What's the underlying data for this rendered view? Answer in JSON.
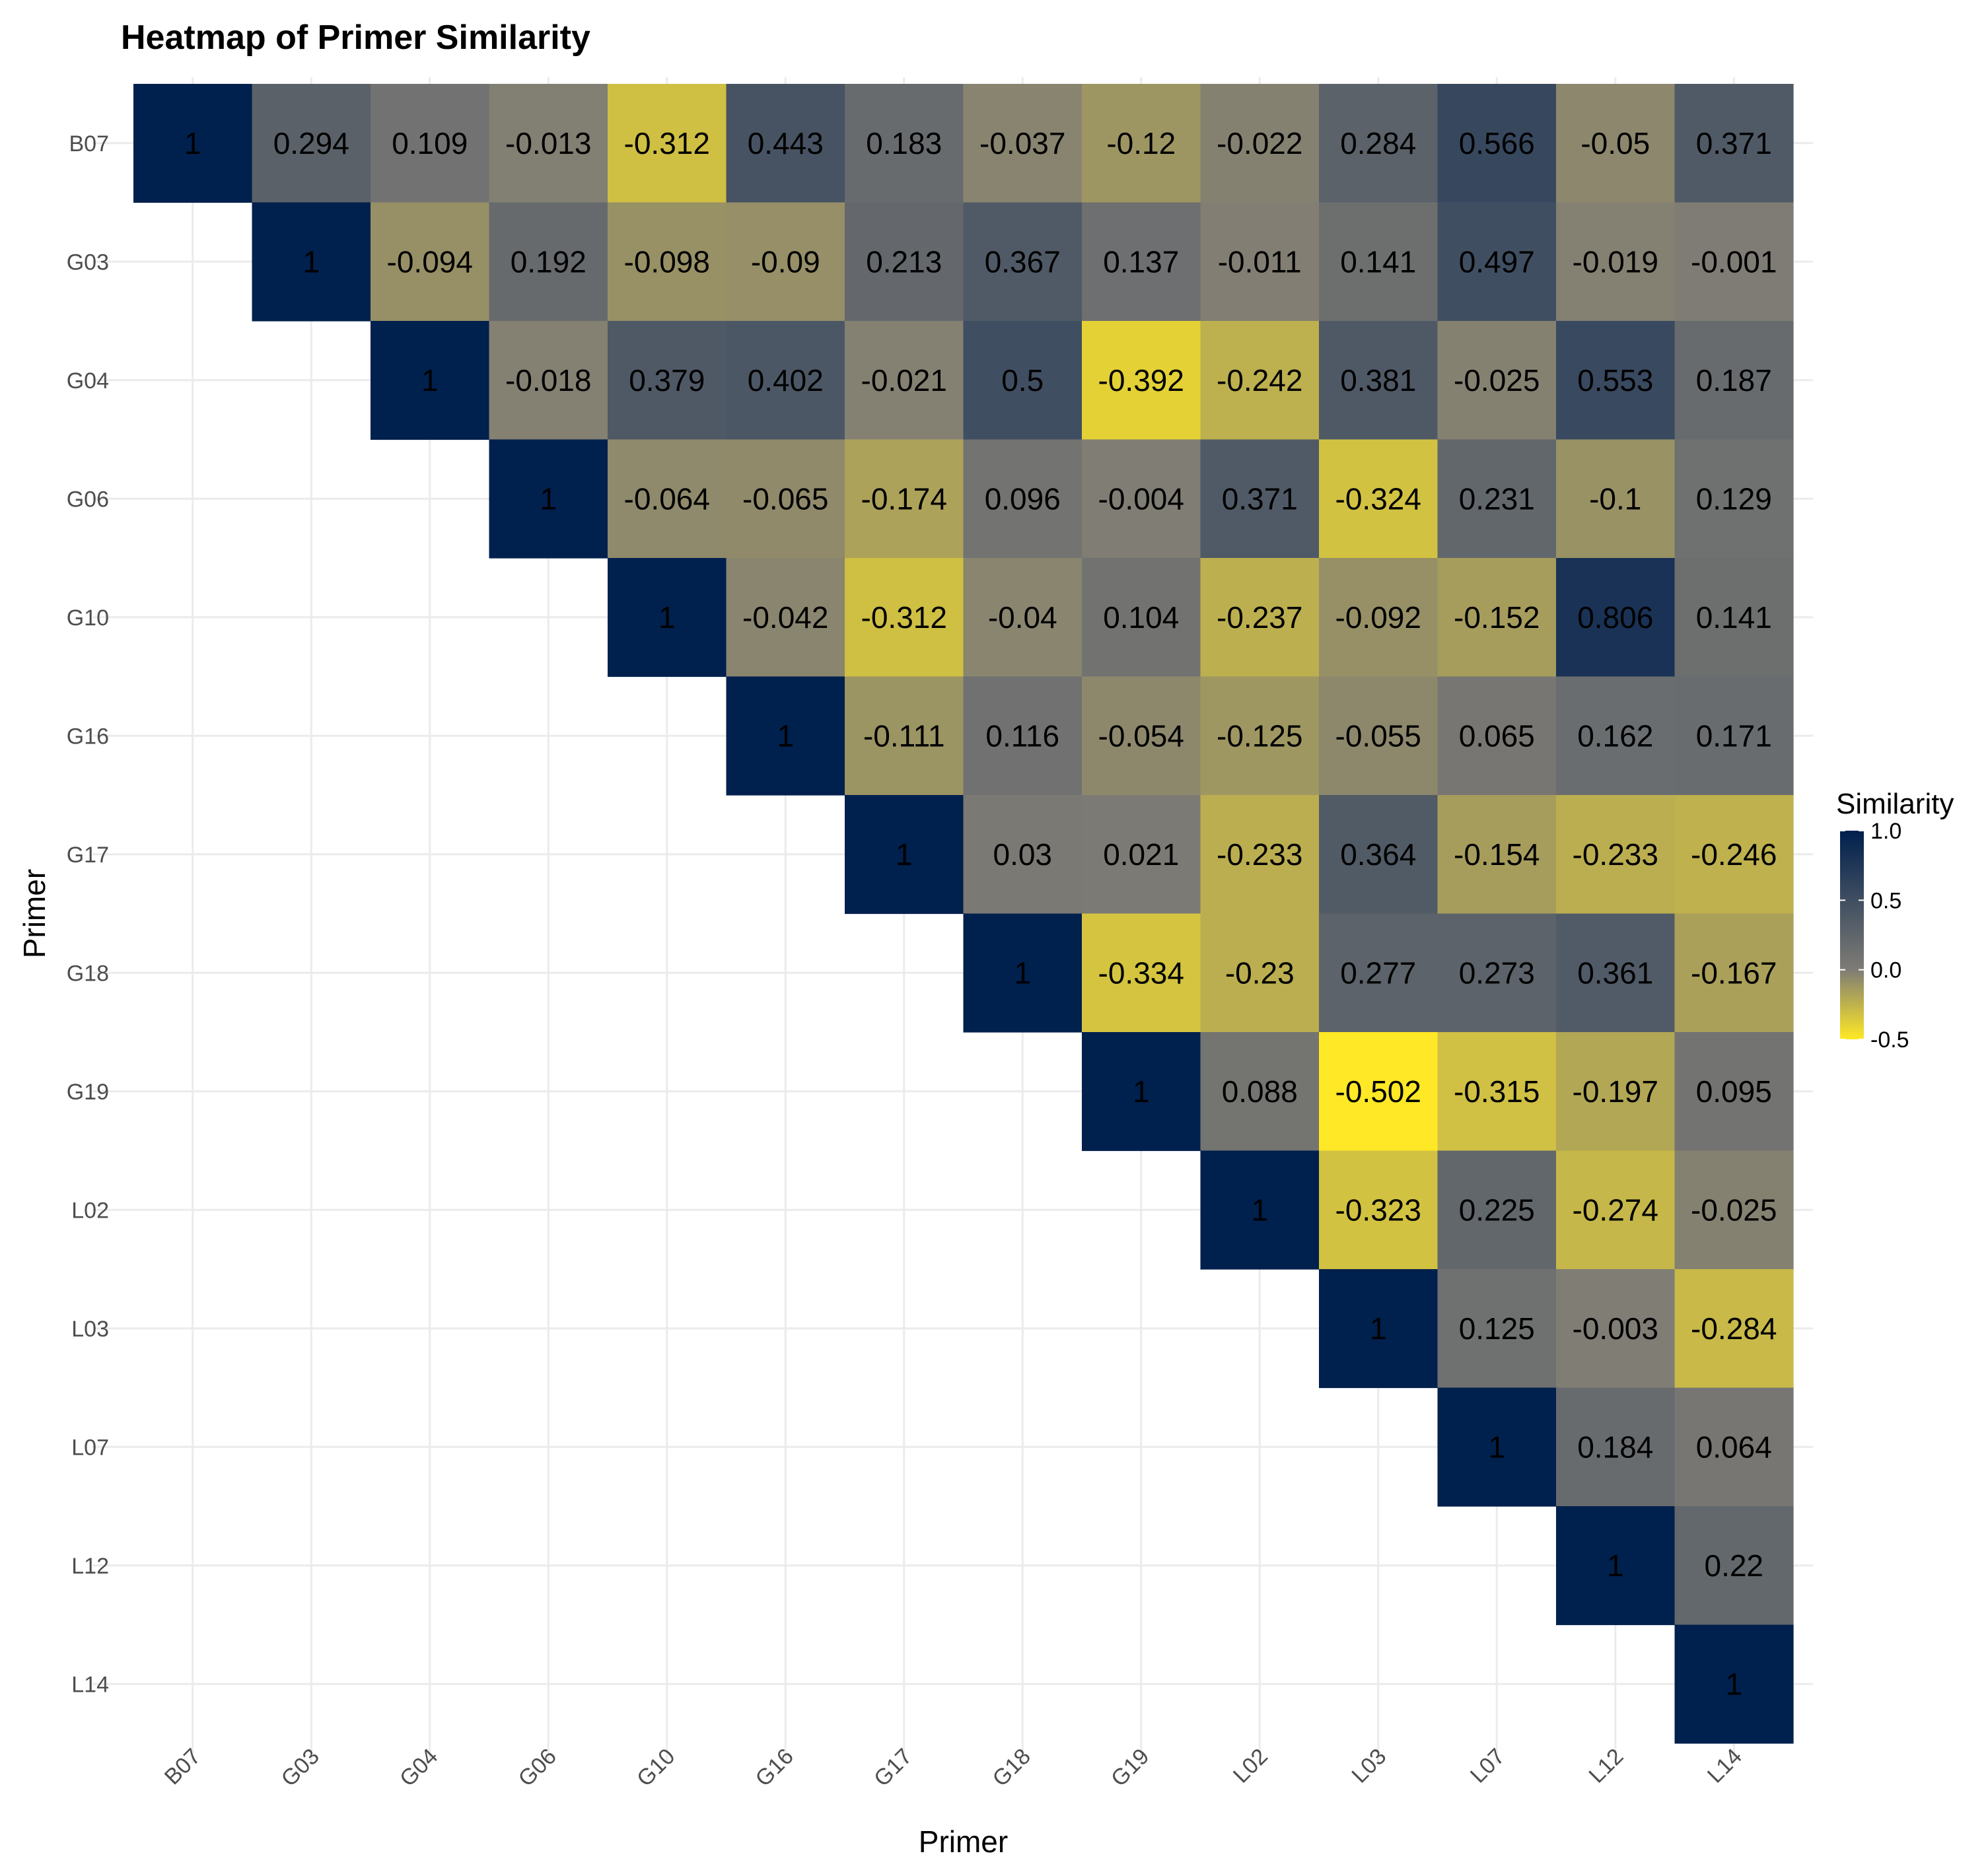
{
  "chart_data": {
    "type": "heatmap",
    "title": "Heatmap of Primer Similarity",
    "xlabel": "Primer",
    "ylabel": "Primer",
    "categories": [
      "B07",
      "G03",
      "G04",
      "G06",
      "G10",
      "G16",
      "G17",
      "G18",
      "G19",
      "L02",
      "L03",
      "L07",
      "L12",
      "L14"
    ],
    "layout": "upper-triangle",
    "rows": [
      {
        "label": "B07",
        "values": [
          1,
          0.294,
          0.109,
          -0.013,
          -0.312,
          0.443,
          0.183,
          -0.037,
          -0.12,
          -0.022,
          0.284,
          0.566,
          -0.05,
          0.371
        ]
      },
      {
        "label": "G03",
        "values": [
          1,
          -0.094,
          0.192,
          -0.098,
          -0.09,
          0.213,
          0.367,
          0.137,
          -0.011,
          0.141,
          0.497,
          -0.019,
          -0.001
        ]
      },
      {
        "label": "G04",
        "values": [
          1,
          -0.018,
          0.379,
          0.402,
          -0.021,
          0.5,
          -0.392,
          -0.242,
          0.381,
          -0.025,
          0.553,
          0.187
        ]
      },
      {
        "label": "G06",
        "values": [
          1,
          -0.064,
          -0.065,
          -0.174,
          0.096,
          -0.004,
          0.371,
          -0.324,
          0.231,
          -0.1,
          0.129
        ]
      },
      {
        "label": "G10",
        "values": [
          1,
          -0.042,
          -0.312,
          -0.04,
          0.104,
          -0.237,
          -0.092,
          -0.152,
          0.806,
          0.141
        ]
      },
      {
        "label": "G16",
        "values": [
          1,
          -0.111,
          0.116,
          -0.054,
          -0.125,
          -0.055,
          0.065,
          0.162,
          0.171
        ]
      },
      {
        "label": "G17",
        "values": [
          1,
          0.03,
          0.021,
          -0.233,
          0.364,
          -0.154,
          -0.233,
          -0.246
        ]
      },
      {
        "label": "G18",
        "values": [
          1,
          -0.334,
          -0.23,
          0.277,
          0.273,
          0.361,
          -0.167
        ]
      },
      {
        "label": "G19",
        "values": [
          1,
          0.088,
          -0.502,
          -0.315,
          -0.197,
          0.095
        ]
      },
      {
        "label": "L02",
        "values": [
          1,
          -0.323,
          0.225,
          -0.274,
          -0.025
        ]
      },
      {
        "label": "L03",
        "values": [
          1,
          0.125,
          -0.003,
          -0.284
        ]
      },
      {
        "label": "L07",
        "values": [
          1,
          0.184,
          0.064
        ]
      },
      {
        "label": "L12",
        "values": [
          1,
          0.22
        ]
      },
      {
        "label": "L14",
        "values": [
          1
        ]
      }
    ],
    "legend": {
      "title": "Similarity",
      "position": "right",
      "range": [
        -0.5,
        1.0
      ],
      "ticks": [
        {
          "value": 1.0,
          "label": "1.0"
        },
        {
          "value": 0.5,
          "label": "0.5"
        },
        {
          "value": 0.0,
          "label": "0.0"
        },
        {
          "value": -0.5,
          "label": "-0.5"
        }
      ],
      "colors": {
        "low": "#FFE825",
        "mid": "#7F7C75",
        "high": "#00204D"
      }
    },
    "grid": true
  }
}
